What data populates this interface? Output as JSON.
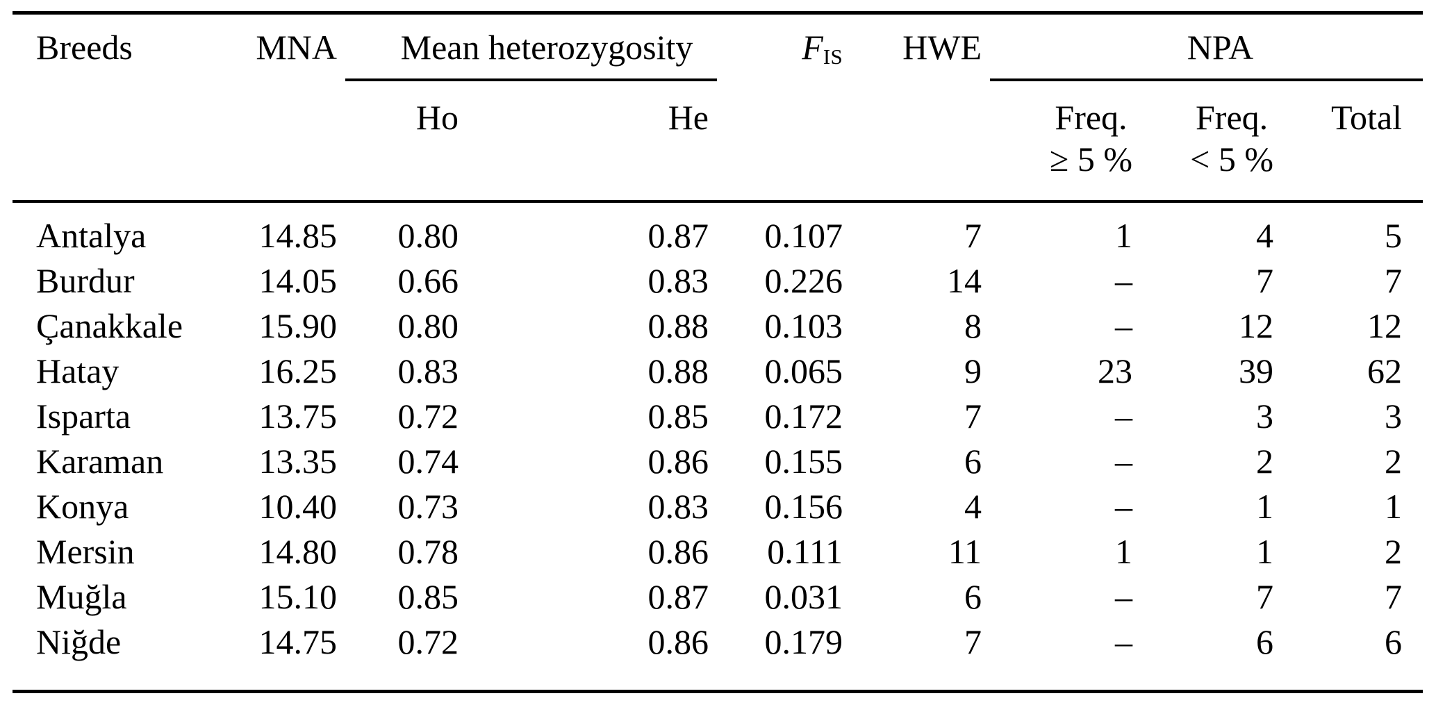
{
  "table": {
    "title_semantic": "breed-genetic-diversity-table",
    "text_color": "#000000",
    "background_color": "#ffffff",
    "missing_value_symbol": "–",
    "header": {
      "breeds": "Breeds",
      "mna": "MNA",
      "mean_heterozygosity": "Mean heterozygosity",
      "ho": "Ho",
      "he": "He",
      "fis_main": "F",
      "fis_sub": "IS",
      "hwe": "HWE",
      "npa": "NPA",
      "freq_ge_line1": "Freq.",
      "freq_ge_line2": "≥ 5 %",
      "freq_lt_line1": "Freq.",
      "freq_lt_line2": "< 5 %",
      "total": "Total"
    },
    "row_keys": [
      "breed",
      "mna",
      "ho",
      "he",
      "fis",
      "hwe",
      "freq_ge",
      "freq_lt",
      "total"
    ],
    "rows": [
      {
        "breed": "Antalya",
        "mna": "14.85",
        "ho": "0.80",
        "he": "0.87",
        "fis": "0.107",
        "hwe": "7",
        "freq_ge": "1",
        "freq_lt": "4",
        "total": "5"
      },
      {
        "breed": "Burdur",
        "mna": "14.05",
        "ho": "0.66",
        "he": "0.83",
        "fis": "0.226",
        "hwe": "14",
        "freq_ge": "–",
        "freq_lt": "7",
        "total": "7"
      },
      {
        "breed": "Çanakkale",
        "mna": "15.90",
        "ho": "0.80",
        "he": "0.88",
        "fis": "0.103",
        "hwe": "8",
        "freq_ge": "–",
        "freq_lt": "12",
        "total": "12"
      },
      {
        "breed": "Hatay",
        "mna": "16.25",
        "ho": "0.83",
        "he": "0.88",
        "fis": "0.065",
        "hwe": "9",
        "freq_ge": "23",
        "freq_lt": "39",
        "total": "62"
      },
      {
        "breed": "Isparta",
        "mna": "13.75",
        "ho": "0.72",
        "he": "0.85",
        "fis": "0.172",
        "hwe": "7",
        "freq_ge": "–",
        "freq_lt": "3",
        "total": "3"
      },
      {
        "breed": "Karaman",
        "mna": "13.35",
        "ho": "0.74",
        "he": "0.86",
        "fis": "0.155",
        "hwe": "6",
        "freq_ge": "–",
        "freq_lt": "2",
        "total": "2"
      },
      {
        "breed": "Konya",
        "mna": "10.40",
        "ho": "0.73",
        "he": "0.83",
        "fis": "0.156",
        "hwe": "4",
        "freq_ge": "–",
        "freq_lt": "1",
        "total": "1"
      },
      {
        "breed": "Mersin",
        "mna": "14.80",
        "ho": "0.78",
        "he": "0.86",
        "fis": "0.111",
        "hwe": "11",
        "freq_ge": "1",
        "freq_lt": "1",
        "total": "2"
      },
      {
        "breed": "Muğla",
        "mna": "15.10",
        "ho": "0.85",
        "he": "0.87",
        "fis": "0.031",
        "hwe": "6",
        "freq_ge": "–",
        "freq_lt": "7",
        "total": "7"
      },
      {
        "breed": "Niğde",
        "mna": "14.75",
        "ho": "0.72",
        "he": "0.86",
        "fis": "0.179",
        "hwe": "7",
        "freq_ge": "–",
        "freq_lt": "6",
        "total": "6"
      }
    ]
  }
}
